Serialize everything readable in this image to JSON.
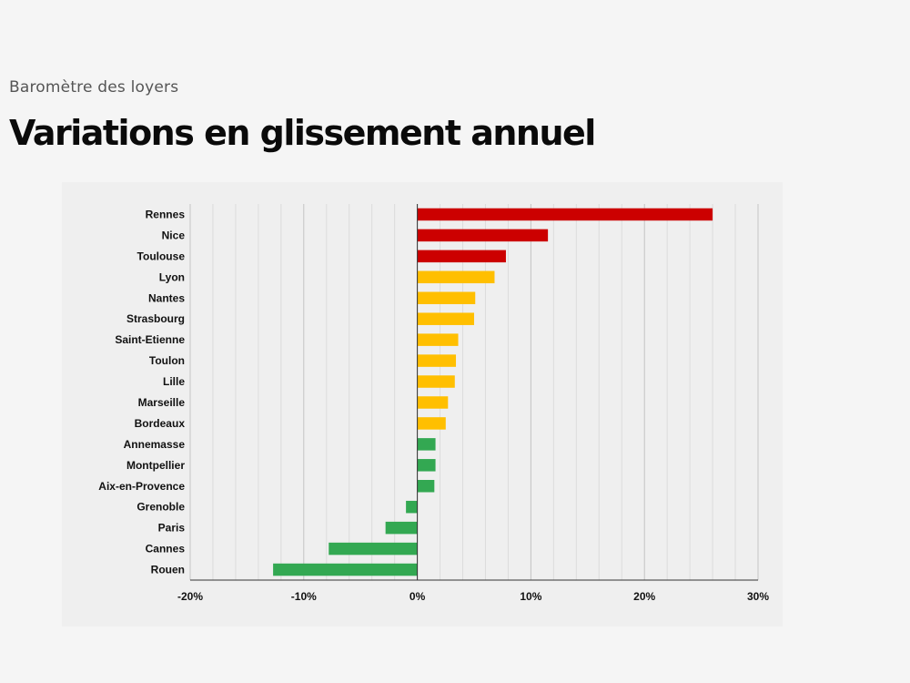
{
  "header": {
    "subtitle": "Baromètre des loyers",
    "title": "Variations en glissement annuel"
  },
  "chart_data": {
    "type": "bar",
    "orientation": "horizontal",
    "categories": [
      "Rennes",
      "Nice",
      "Toulouse",
      "Lyon",
      "Nantes",
      "Strasbourg",
      "Saint-Etienne",
      "Toulon",
      "Lille",
      "Marseille",
      "Bordeaux",
      "Annemasse",
      "Montpellier",
      "Aix-en-Provence",
      "Grenoble",
      "Paris",
      "Cannes",
      "Rouen"
    ],
    "values": [
      26.0,
      11.5,
      7.8,
      6.8,
      5.1,
      5.0,
      3.6,
      3.4,
      3.3,
      2.7,
      2.5,
      1.6,
      1.6,
      1.5,
      -1.0,
      -2.8,
      -7.8,
      -12.7
    ],
    "bar_colors": [
      "#cc0000",
      "#cc0000",
      "#cc0000",
      "#ffbf00",
      "#ffbf00",
      "#ffbf00",
      "#ffbf00",
      "#ffbf00",
      "#ffbf00",
      "#ffbf00",
      "#ffbf00",
      "#33a852",
      "#33a852",
      "#33a852",
      "#33a852",
      "#33a852",
      "#33a852",
      "#33a852"
    ],
    "xlim": [
      -20,
      30
    ],
    "xticks": [
      -20,
      -10,
      0,
      10,
      20,
      30
    ],
    "xtick_labels": [
      "-20%",
      "-10%",
      "0%",
      "10%",
      "20%",
      "30%"
    ],
    "grid": true,
    "title": "",
    "xlabel": "",
    "ylabel": ""
  }
}
